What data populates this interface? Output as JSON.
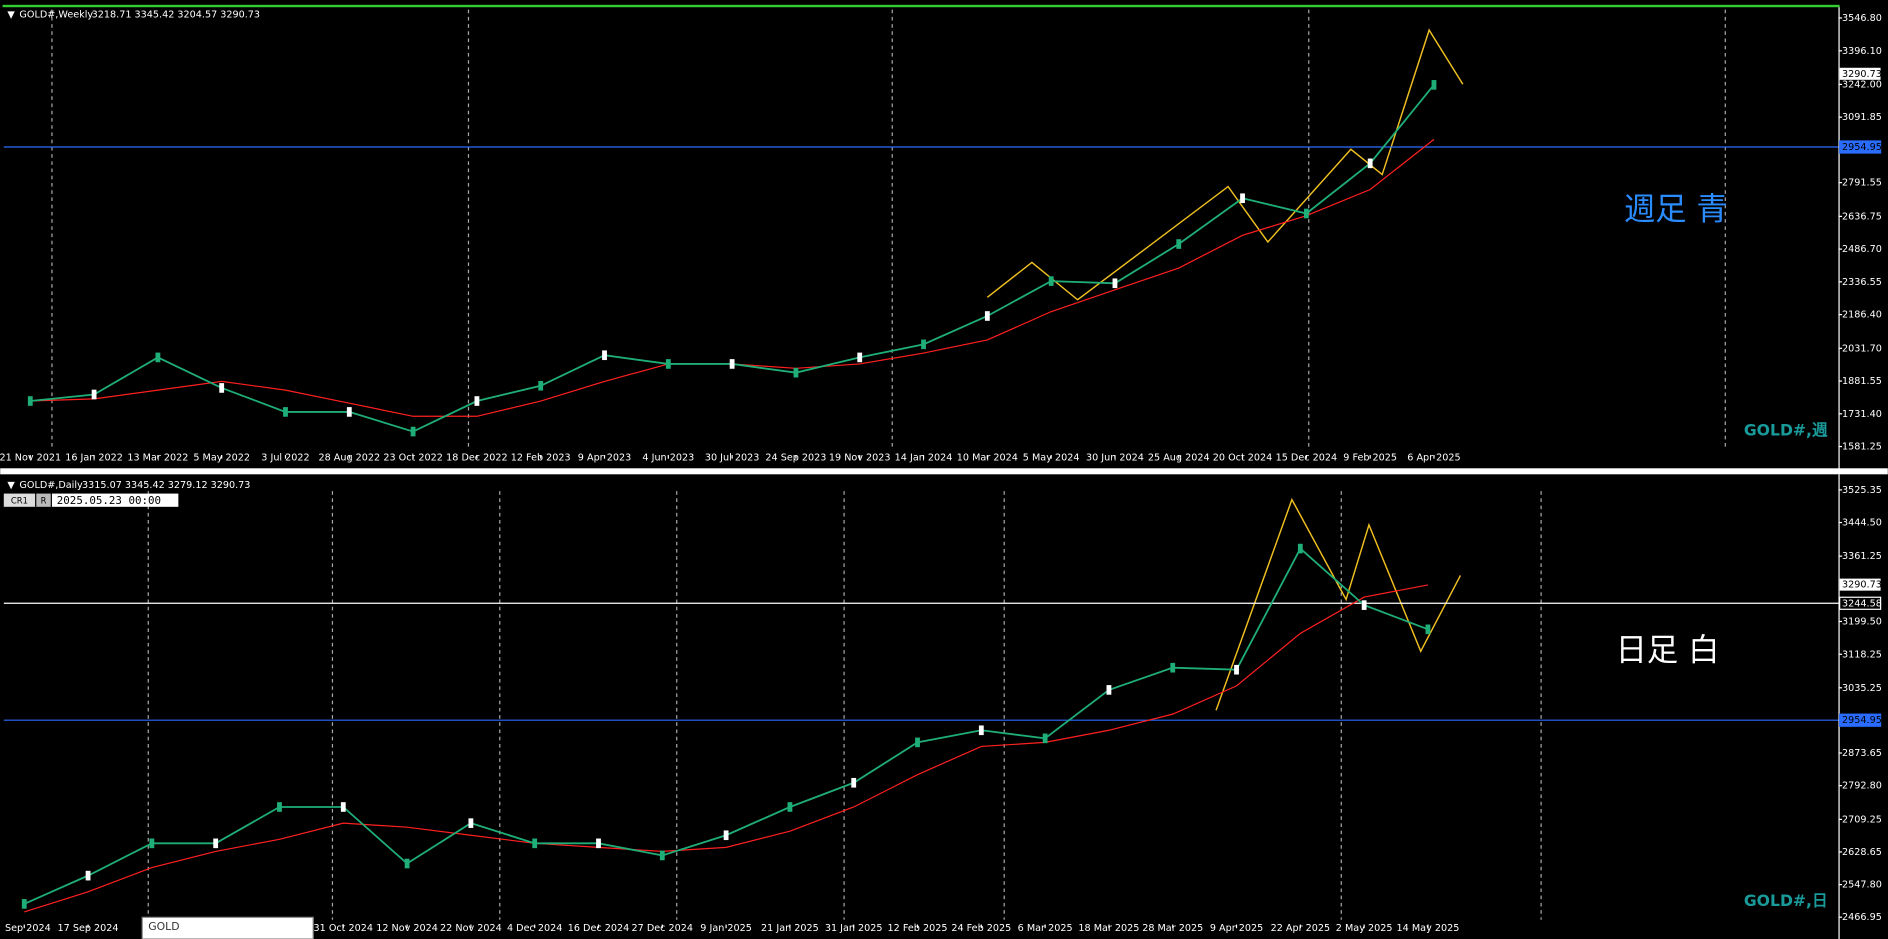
{
  "panels": [
    {
      "header": "GOLD#,Weekly",
      "ohlc": "3218.71 3345.42 3204.57 3290.73",
      "label": "週足 青",
      "symbol": "GOLD#,週",
      "ylim": [
        1487,
        3585
      ],
      "yticks": [
        {
          "value": 3546.8,
          "label": "3546.80"
        },
        {
          "value": 3396.1,
          "label": "3396.10"
        },
        {
          "value": 3242,
          "label": "3242.00"
        },
        3091.85,
        2791.55,
        2636.75,
        {
          "value": 2486.7,
          "label": "2486.70"
        },
        2336.55,
        {
          "value": 2186.4,
          "label": "2186.40"
        },
        {
          "value": 2031.7,
          "label": "2031.70"
        },
        1881.55,
        {
          "value": 1731.4,
          "label": "1731.40"
        },
        1581.25
      ],
      "categories": [
        "21 Nov 2021",
        "16 Jan 2022",
        "13 Mar 2022",
        "5 May 2022",
        "3 Jul 2022",
        "28 Aug 2022",
        "23 Oct 2022",
        "18 Dec 2022",
        "12 Feb 2023",
        "9 Apr 2023",
        "4 Jun 2023",
        "30 Jul 2023",
        "24 Sep 2023",
        "19 Nov 2023",
        "14 Jan 2024",
        "10 Mar 2024",
        "5 May 2024",
        "30 Jun 2024",
        "25 Aug 2024",
        "20 Oct 2024",
        "15 Dec 2024",
        "9 Feb 2025",
        "6 Apr 2025"
      ],
      "close": [
        1790,
        1820,
        1990,
        1850,
        1740,
        1740,
        1650,
        1790,
        1860,
        2000,
        1960,
        1960,
        1920,
        1990,
        2050,
        2180,
        2340,
        2330,
        2510,
        2720,
        2650,
        2880,
        3240
      ],
      "ma": [
        1790,
        1800,
        1840,
        1880,
        1840,
        1780,
        1720,
        1720,
        1790,
        1880,
        1960,
        1960,
        1940,
        1960,
        2010,
        2070,
        2200,
        2300,
        2400,
        2550,
        2640,
        2760,
        2990
      ],
      "price": 3290.73,
      "levels": [
        2954.95
      ]
    },
    {
      "header": "GOLD#,Daily",
      "ohlc": "3315.07 3345.42 3279.12 3290.73",
      "label": "日足 白",
      "symbol": "GOLD#,日",
      "ylim": [
        2419,
        3558
      ],
      "yticks": [
        3525.35,
        {
          "value": 3444.5,
          "label": "3444.50"
        },
        3361.25,
        {
          "value": 3199.5,
          "label": "3199.50"
        },
        3118.25,
        3035.25,
        2873.65,
        {
          "value": 2792.8,
          "label": "2792.80"
        },
        2709.25,
        2628.65,
        {
          "value": 2547.8,
          "label": "2547.80"
        },
        2466.95
      ],
      "categories": [
        "Sep 2024",
        "17 Sep 2024",
        null,
        null,
        null,
        "31 Oct 2024",
        "12 Nov 2024",
        "22 Nov 2024",
        "4 Dec 2024",
        "16 Dec 2024",
        "27 Dec 2024",
        "9 Jan 2025",
        "21 Jan 2025",
        "31 Jan 2025",
        "12 Feb 2025",
        "24 Feb 2025",
        "6 Mar 2025",
        "18 Mar 2025",
        "28 Mar 2025",
        "9 Apr 2025",
        "22 Apr 2025",
        "2 May 2025",
        "14 May 2025"
      ],
      "close": [
        2500,
        2570,
        2650,
        2650,
        2740,
        2740,
        2600,
        2700,
        2650,
        2650,
        2620,
        2670,
        2740,
        2800,
        2900,
        2930,
        2910,
        3030,
        3085,
        3080,
        3380,
        3240,
        3180
      ],
      "ma": [
        2480,
        2530,
        2590,
        2630,
        2660,
        2700,
        2690,
        2670,
        2650,
        2640,
        2630,
        2640,
        2680,
        2740,
        2820,
        2890,
        2900,
        2930,
        2970,
        3040,
        3170,
        3260,
        3290
      ],
      "price": 3290.73,
      "levels": [
        3244.58,
        2954.95
      ],
      "cursor": {
        "tag1": "CR1",
        "tag2": "R",
        "time": "2025.05.23 00:00"
      },
      "tooltip": "GOLD"
    }
  ]
}
